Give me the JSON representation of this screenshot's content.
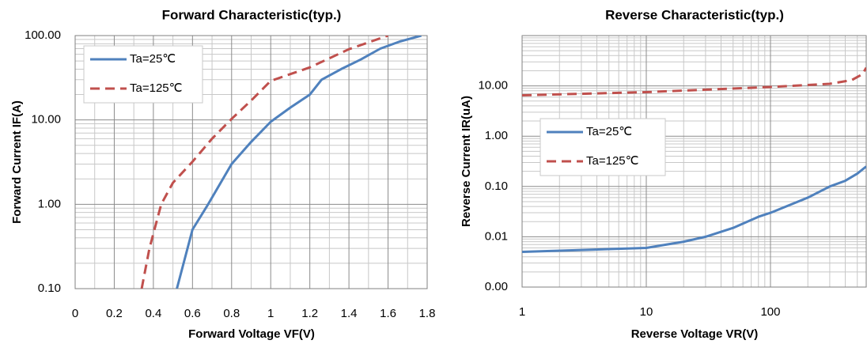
{
  "chart_data": [
    {
      "type": "line",
      "title": "Forward Characteristic(typ.)",
      "x_label": "Forward Voltage VF(V)",
      "y_label": "Forward Current IF(A)",
      "xscale": "linear",
      "yscale": "log",
      "grid": true,
      "legend": "upper left",
      "xlim": [
        0,
        1.8
      ],
      "xticks": [
        0,
        0.2,
        0.4,
        0.6,
        0.8,
        1,
        1.2,
        1.4,
        1.6,
        1.8
      ],
      "ylim": [
        0.1,
        100
      ],
      "yticks": [
        {
          "value": 0.1,
          "label": "0.10"
        },
        {
          "value": 1,
          "label": "1.00"
        },
        {
          "value": 10,
          "label": "10.00"
        },
        {
          "value": 100,
          "label": "100.00"
        }
      ],
      "series": [
        {
          "name": "Ta=25℃",
          "color": "#4f81bd",
          "dash": false,
          "x": [
            0.52,
            0.6,
            0.68,
            0.8,
            0.9,
            1.0,
            1.1,
            1.2,
            1.26,
            1.36,
            1.46,
            1.56,
            1.66,
            1.77
          ],
          "values": [
            0.1,
            0.5,
            1.0,
            3.0,
            5.5,
            9.5,
            14,
            20,
            30,
            40,
            52,
            70,
            85,
            100
          ]
        },
        {
          "name": "Ta=125℃",
          "color": "#c0504d",
          "dash": true,
          "x": [
            0.34,
            0.38,
            0.44,
            0.5,
            0.6,
            0.7,
            0.8,
            0.9,
            1.0,
            1.2,
            1.4,
            1.6
          ],
          "values": [
            0.1,
            0.3,
            1.0,
            1.8,
            3.2,
            6.0,
            10.3,
            17,
            29,
            42,
            69,
            100
          ]
        }
      ]
    },
    {
      "type": "line",
      "title": "Reverse Characteristic(typ.)",
      "x_label": "Reverse Voltage VR(V)",
      "y_label": "Reverse Current IR(uA)",
      "xscale": "log",
      "yscale": "log",
      "grid": true,
      "legend": "center left",
      "xlim": [
        1,
        590
      ],
      "xticks": [
        1,
        10,
        100
      ],
      "ylim": [
        0.001,
        100
      ],
      "yticks": [
        {
          "value": 0.001,
          "label": "0.00"
        },
        {
          "value": 0.01,
          "label": "0.01"
        },
        {
          "value": 0.1,
          "label": "0.10"
        },
        {
          "value": 1,
          "label": "1.00"
        },
        {
          "value": 10,
          "label": "10.00"
        }
      ],
      "series": [
        {
          "name": "Ta=25℃",
          "color": "#4f81bd",
          "dash": false,
          "x": [
            1,
            10,
            20,
            30,
            50,
            80,
            100,
            200,
            300,
            400,
            500,
            590
          ],
          "values": [
            0.005,
            0.006,
            0.008,
            0.01,
            0.015,
            0.025,
            0.03,
            0.06,
            0.1,
            0.13,
            0.18,
            0.25
          ]
        },
        {
          "name": "Ta=125℃",
          "color": "#c0504d",
          "dash": true,
          "x": [
            1,
            10,
            100,
            300,
            450,
            550,
            590
          ],
          "values": [
            6.5,
            7.5,
            9.5,
            11,
            13,
            17,
            23
          ]
        }
      ]
    }
  ]
}
